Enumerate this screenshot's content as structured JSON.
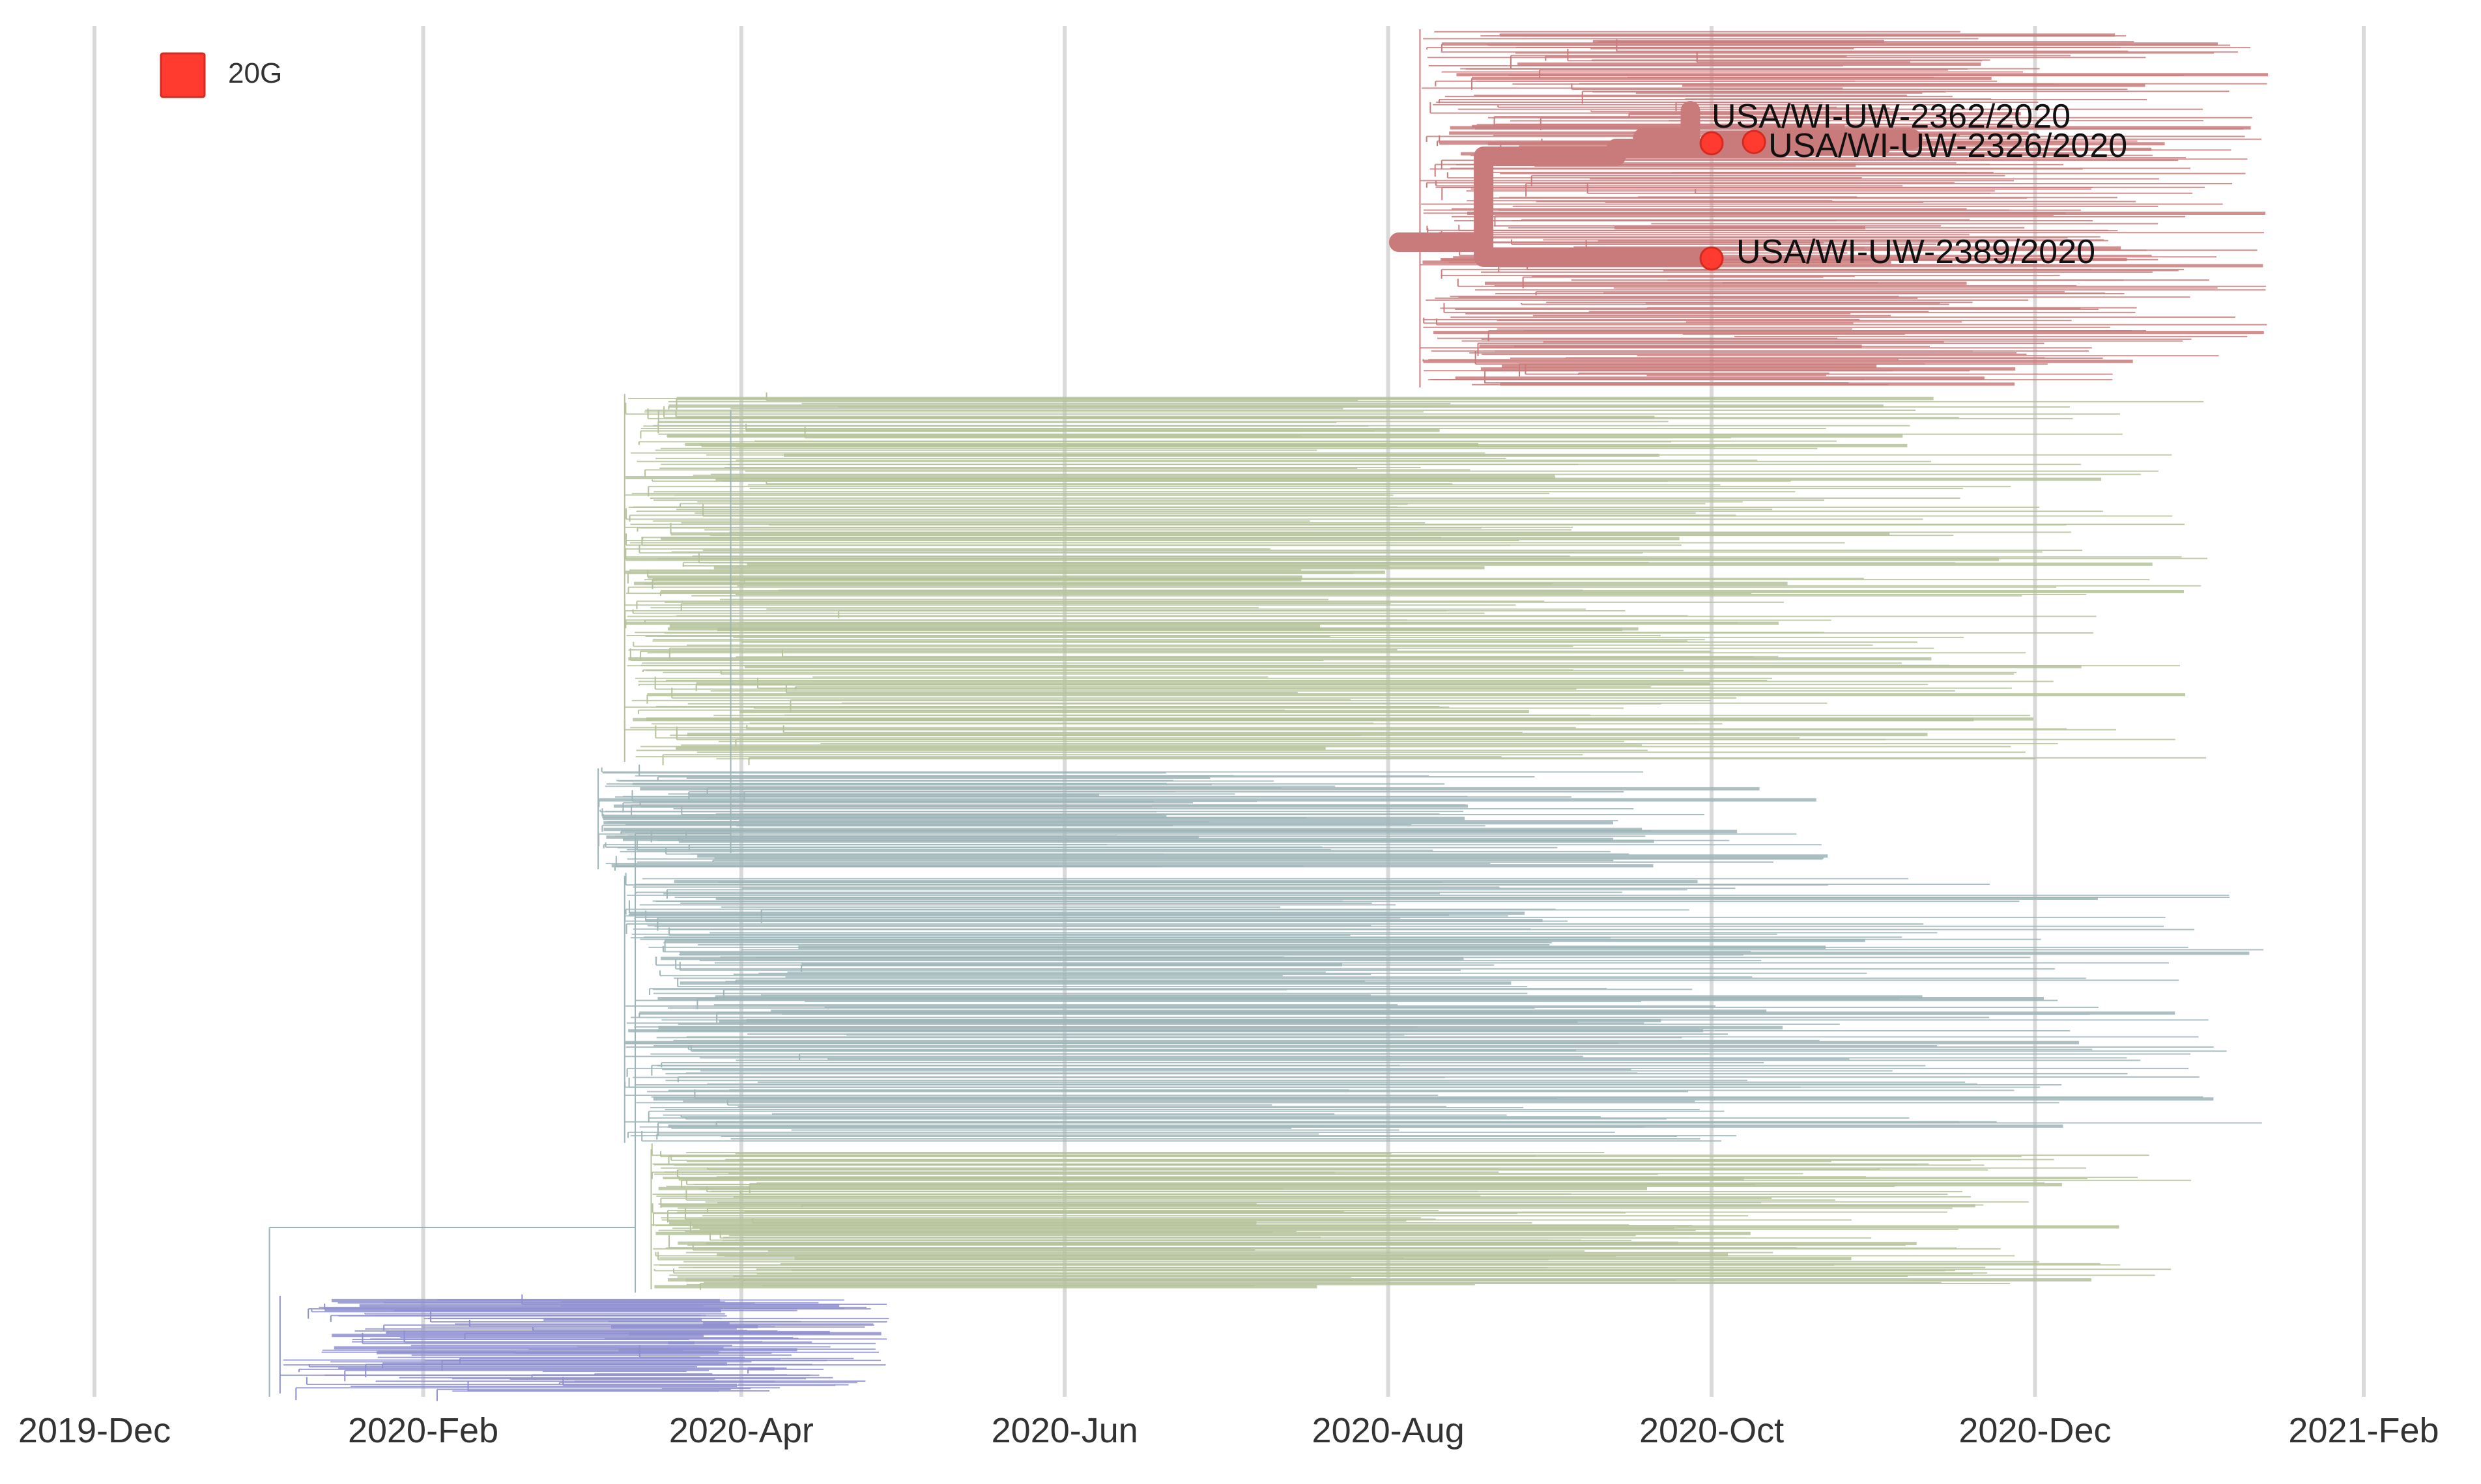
{
  "chart_data": {
    "type": "phylogenetic-tree",
    "x_axis": {
      "scale": "time",
      "ticks": [
        "2019-Dec",
        "2020-Feb",
        "2020-Apr",
        "2020-Jun",
        "2020-Aug",
        "2020-Oct",
        "2020-Dec",
        "2021-Feb"
      ],
      "tick_dates": [
        "2019-12-01",
        "2020-02-01",
        "2020-04-01",
        "2020-06-01",
        "2020-08-01",
        "2020-10-01",
        "2020-12-01",
        "2021-02-01"
      ],
      "range": [
        "2019-12-01",
        "2021-02-01"
      ]
    },
    "grid": "vertical",
    "legend": {
      "position": "top-left",
      "items": [
        {
          "label": "20G",
          "color": "#FF3B30"
        }
      ]
    },
    "highlighted_tips": [
      {
        "name": "USA/WI-UW-2362/2020",
        "date": "2020-10-01"
      },
      {
        "name": "USA/WI-UW-2326/2020",
        "date": "2020-10-09"
      },
      {
        "name": "USA/WI-UW-2389/2020",
        "date": "2020-10-01"
      }
    ],
    "clade_colors": {
      "20G": "#C97B7B",
      "lineage-olive": "#B5C29A",
      "lineage-teal": "#9DB5B8",
      "lineage-violet": "#8E8FD0"
    },
    "highlight_path_color": "#C97B7B",
    "highlight_marker_color": "#FF3B30"
  }
}
